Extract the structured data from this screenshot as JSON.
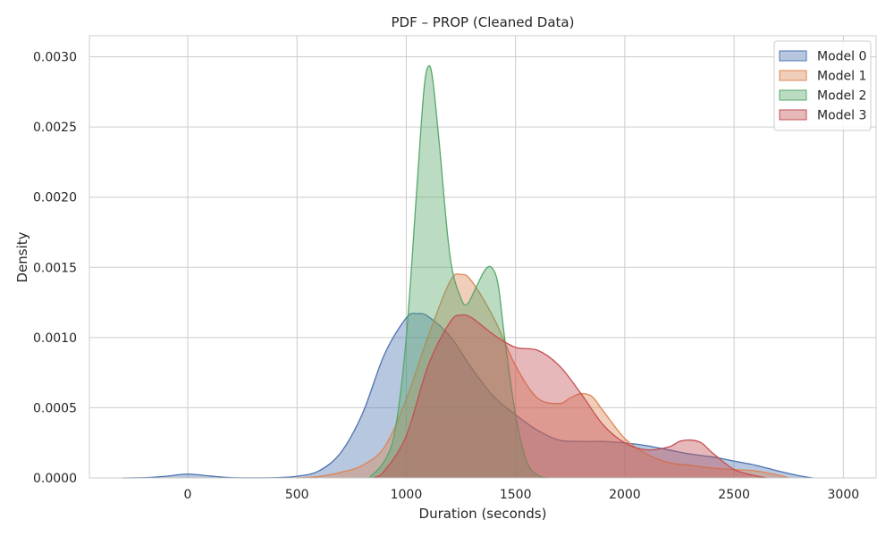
{
  "chart_data": {
    "type": "area",
    "title": "PDF – PROP (Cleaned Data)",
    "xlabel": "Duration (seconds)",
    "ylabel": "Density",
    "xlim": [
      -450,
      3150
    ],
    "ylim": [
      0,
      0.00315
    ],
    "x_ticks": [
      0,
      500,
      1000,
      1500,
      2000,
      2500,
      3000
    ],
    "y_ticks": [
      0.0,
      0.0005,
      0.001,
      0.0015,
      0.002,
      0.0025,
      0.003
    ],
    "x_tick_labels": [
      "0",
      "500",
      "1000",
      "1500",
      "2000",
      "2500",
      "3000"
    ],
    "y_tick_labels": [
      "0.0000",
      "0.0005",
      "0.0010",
      "0.0015",
      "0.0020",
      "0.0025",
      "0.0030"
    ],
    "grid": true,
    "legend_position": "top-right",
    "series": [
      {
        "name": "Model 0",
        "color": "#4c72b0",
        "x": [
          -300,
          -200,
          -100,
          0,
          100,
          200,
          300,
          400,
          500,
          600,
          700,
          800,
          900,
          1000,
          1050,
          1100,
          1200,
          1300,
          1400,
          1500,
          1600,
          1700,
          1800,
          1900,
          2000,
          2100,
          2200,
          2300,
          2400,
          2500,
          2600,
          2700,
          2800,
          2860
        ],
        "y": [
          0,
          2e-06,
          1.2e-05,
          2.8e-05,
          1.4e-05,
          2e-06,
          5e-07,
          2e-06,
          1.2e-05,
          5e-05,
          0.00018,
          0.00046,
          0.00088,
          0.00114,
          0.00117,
          0.00115,
          0.00101,
          0.00078,
          0.00058,
          0.00045,
          0.00034,
          0.00027,
          0.00026,
          0.00026,
          0.00025,
          0.00023,
          0.0002,
          0.00017,
          0.00015,
          0.00012,
          9e-05,
          5e-05,
          1.5e-05,
          0
        ]
      },
      {
        "name": "Model 1",
        "color": "#dd8452",
        "x": [
          500,
          600,
          700,
          800,
          900,
          1000,
          1100,
          1200,
          1250,
          1300,
          1400,
          1500,
          1600,
          1700,
          1750,
          1800,
          1850,
          1900,
          2000,
          2100,
          2200,
          2300,
          2400,
          2500,
          2600,
          2700,
          2750
        ],
        "y": [
          0,
          1e-05,
          4e-05,
          9e-05,
          0.00022,
          0.00056,
          0.00101,
          0.0014,
          0.00145,
          0.0014,
          0.00114,
          0.0008,
          0.00057,
          0.00053,
          0.00057,
          0.0006,
          0.00058,
          0.00048,
          0.00028,
          0.00017,
          0.00011,
          9e-05,
          7e-05,
          6e-05,
          5e-05,
          2e-05,
          0
        ]
      },
      {
        "name": "Model 2",
        "color": "#55a868",
        "x": [
          830,
          900,
          950,
          1000,
          1050,
          1080,
          1100,
          1120,
          1150,
          1200,
          1250,
          1280,
          1320,
          1360,
          1390,
          1420,
          1450,
          1500,
          1550,
          1600,
          1650
        ],
        "y": [
          0,
          0.00012,
          0.00035,
          0.001,
          0.0021,
          0.00275,
          0.00293,
          0.00285,
          0.0024,
          0.00158,
          0.00128,
          0.00124,
          0.00136,
          0.00148,
          0.0015,
          0.00138,
          0.001,
          0.00045,
          0.00012,
          2e-05,
          0
        ]
      },
      {
        "name": "Model 3",
        "color": "#c44e52",
        "x": [
          850,
          900,
          1000,
          1100,
          1200,
          1250,
          1300,
          1400,
          1500,
          1600,
          1700,
          1800,
          1900,
          2000,
          2100,
          2200,
          2250,
          2300,
          2350,
          2400,
          2500,
          2600,
          2650
        ],
        "y": [
          0,
          5e-05,
          0.0003,
          0.0008,
          0.00111,
          0.00116,
          0.00114,
          0.00102,
          0.00093,
          0.00091,
          0.0008,
          0.0006,
          0.00038,
          0.00025,
          0.0002,
          0.00022,
          0.00026,
          0.00027,
          0.00025,
          0.00018,
          6e-05,
          1.5e-05,
          0
        ]
      }
    ]
  }
}
